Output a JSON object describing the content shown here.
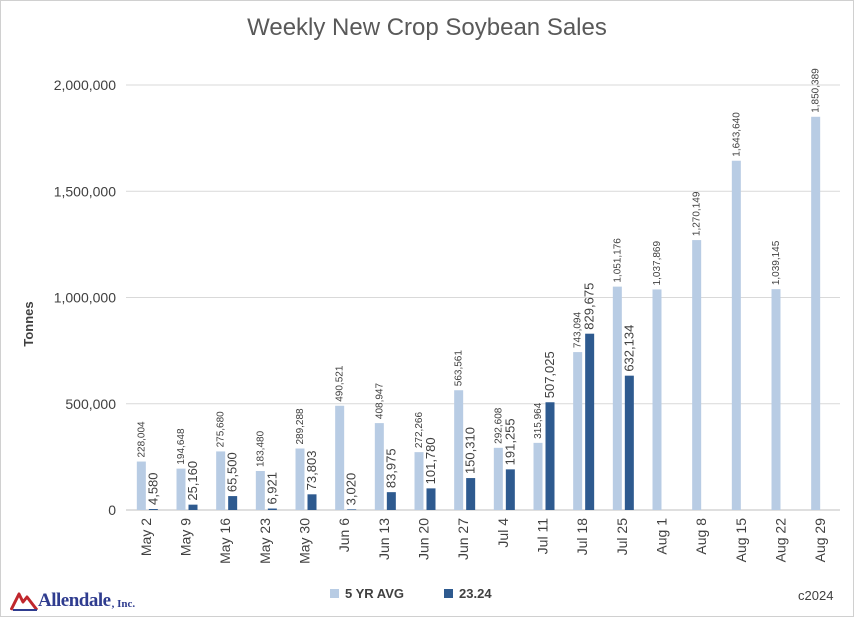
{
  "chart_data": {
    "type": "bar",
    "title": "Weekly New Crop Soybean Sales",
    "ylabel": "Tonnes",
    "xlabel": "",
    "ylim": [
      0,
      2000000
    ],
    "yticks": [
      "0",
      "500,000",
      "1,000,000",
      "1,500,000",
      "2,000,000"
    ],
    "ytick_values": [
      0,
      500000,
      1000000,
      1500000,
      2000000
    ],
    "grid": true,
    "legend_position": "bottom",
    "categories": [
      "May 2",
      "May 9",
      "May 16",
      "May 23",
      "May 30",
      "Jun 6",
      "Jun 13",
      "Jun 20",
      "Jun 27",
      "Jul 4",
      "Jul 11",
      "Jul 18",
      "Jul 25",
      "Aug 1",
      "Aug 8",
      "Aug 15",
      "Aug 22",
      "Aug 29"
    ],
    "series": [
      {
        "name": "5 YR AVG",
        "color": "#b8cce4",
        "values": [
          228004,
          194648,
          275680,
          183480,
          289288,
          490521,
          408947,
          272266,
          563561,
          292608,
          315964,
          743094,
          1051176,
          1037869,
          1270149,
          1643640,
          1039145,
          1850389
        ],
        "labels": [
          "228,004",
          "194,648",
          "275,680",
          "183,480",
          "289,288",
          "490,521",
          "408,947",
          "272,266",
          "563,561",
          "292,608",
          "315,964",
          "743,094",
          "1,051,176",
          "1,037,869",
          "1,270,149",
          "1,643,640",
          "1,039,145",
          "1,850,389"
        ]
      },
      {
        "name": "23.24",
        "color": "#2e5a8f",
        "values": [
          4580,
          25160,
          65500,
          6921,
          73803,
          3020,
          83975,
          101780,
          150310,
          191255,
          507025,
          829675,
          632134,
          null,
          null,
          null,
          null,
          null
        ],
        "labels": [
          "4,580",
          "25,160",
          "65,500",
          "6,921",
          "73,803",
          "3,020",
          "83,975",
          "101,780",
          "150,310",
          "191,255",
          "507,025",
          "829,675",
          "632,134",
          null,
          null,
          null,
          null,
          null
        ]
      }
    ]
  },
  "footer": {
    "logo_text": "Allendale",
    "logo_suffix": ", Inc.",
    "copyright": "c2024"
  },
  "colors": {
    "avg": "#b8cce4",
    "current": "#2e5a8f",
    "grid": "#d9d9d9",
    "axis_text": "#404040",
    "logo_red": "#c0272d",
    "logo_blue": "#2f3c8f"
  }
}
